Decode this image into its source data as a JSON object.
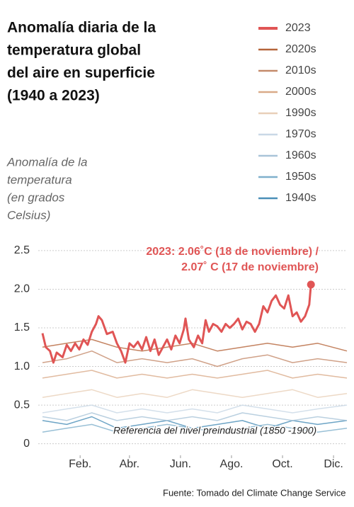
{
  "chart_data": {
    "type": "line",
    "title": [
      "Anomalía diaria de la",
      "temperatura global",
      "del aire en superficie",
      "(1940 a 2023)"
    ],
    "y_axis_label": [
      "Anomalía de la",
      "temperatura",
      "(en grados",
      "Celsius)"
    ],
    "annotation": [
      "2023: 2.06˚C (18 de noviembre) /",
      "2.07˚ C (17 de noviembre)"
    ],
    "reference_label": "Referencia del nivel preindustrial (1850 -1900)",
    "source": "Fuente: Tomado del Climate Change Service",
    "xlim": [
      1,
      365
    ],
    "xticks": [
      {
        "value": 46,
        "label": "Feb."
      },
      {
        "value": 105,
        "label": "Abr."
      },
      {
        "value": 166,
        "label": "Jun."
      },
      {
        "value": 227,
        "label": "Ago."
      },
      {
        "value": 288,
        "label": "Oct."
      },
      {
        "value": 349,
        "label": "Dic."
      }
    ],
    "ylim": [
      -0.15,
      2.6
    ],
    "yticks": [
      0,
      0.5,
      {
        "value": 1,
        "label": "1.0"
      },
      1.5,
      {
        "value": 2,
        "label": "2.0"
      },
      2.5
    ],
    "grid": true,
    "legend": "top-right",
    "series": [
      {
        "name": "1940s",
        "color": "#4a8fb8",
        "x": [
          1,
          30,
          60,
          90,
          120,
          150,
          180,
          210,
          240,
          270,
          300,
          330,
          365
        ],
        "values": [
          0.3,
          0.25,
          0.35,
          0.2,
          0.25,
          0.3,
          0.2,
          0.25,
          0.3,
          0.2,
          0.3,
          0.25,
          0.3
        ]
      },
      {
        "name": "1950s",
        "color": "#7fb0cc",
        "x": [
          1,
          30,
          60,
          90,
          120,
          150,
          180,
          210,
          240,
          270,
          300,
          330,
          365
        ],
        "values": [
          0.15,
          0.2,
          0.25,
          0.15,
          0.2,
          0.25,
          0.2,
          0.15,
          0.2,
          0.25,
          0.2,
          0.15,
          0.2
        ]
      },
      {
        "name": "1960s",
        "color": "#a9c4d8",
        "x": [
          1,
          30,
          60,
          90,
          120,
          150,
          180,
          210,
          240,
          270,
          300,
          330,
          365
        ],
        "values": [
          0.35,
          0.3,
          0.4,
          0.3,
          0.35,
          0.3,
          0.35,
          0.3,
          0.4,
          0.35,
          0.3,
          0.35,
          0.3
        ]
      },
      {
        "name": "1970s",
        "color": "#c9d8e6",
        "x": [
          1,
          30,
          60,
          90,
          120,
          150,
          180,
          210,
          240,
          270,
          300,
          330,
          365
        ],
        "values": [
          0.4,
          0.45,
          0.5,
          0.4,
          0.45,
          0.4,
          0.45,
          0.4,
          0.5,
          0.45,
          0.4,
          0.45,
          0.5
        ]
      },
      {
        "name": "1990s",
        "color": "#e8cfb8",
        "x": [
          1,
          30,
          60,
          90,
          120,
          150,
          180,
          210,
          240,
          270,
          300,
          330,
          365
        ],
        "values": [
          0.6,
          0.65,
          0.7,
          0.6,
          0.65,
          0.6,
          0.7,
          0.65,
          0.6,
          0.65,
          0.7,
          0.6,
          0.65
        ]
      },
      {
        "name": "2000s",
        "color": "#d9aa88",
        "x": [
          1,
          30,
          60,
          90,
          120,
          150,
          180,
          210,
          240,
          270,
          300,
          330,
          365
        ],
        "values": [
          0.85,
          0.9,
          0.95,
          0.85,
          0.9,
          0.85,
          0.9,
          0.85,
          0.9,
          0.95,
          0.85,
          0.9,
          0.85
        ]
      },
      {
        "name": "2010s",
        "color": "#c48a6a",
        "x": [
          1,
          30,
          60,
          90,
          120,
          150,
          180,
          210,
          240,
          270,
          300,
          330,
          365
        ],
        "values": [
          1.05,
          1.1,
          1.2,
          1.05,
          1.1,
          1.05,
          1.1,
          1.0,
          1.1,
          1.15,
          1.05,
          1.1,
          1.05
        ]
      },
      {
        "name": "2020s",
        "color": "#b5643a",
        "x": [
          1,
          30,
          60,
          90,
          120,
          150,
          180,
          210,
          240,
          270,
          300,
          330,
          365
        ],
        "values": [
          1.25,
          1.3,
          1.35,
          1.25,
          1.2,
          1.25,
          1.3,
          1.2,
          1.25,
          1.3,
          1.25,
          1.3,
          1.2
        ]
      },
      {
        "name": "2023",
        "color": "#e05555",
        "x": [
          1,
          5,
          10,
          14,
          18,
          25,
          30,
          35,
          40,
          45,
          50,
          55,
          60,
          65,
          68,
          72,
          78,
          85,
          90,
          95,
          100,
          105,
          110,
          115,
          120,
          125,
          130,
          135,
          140,
          145,
          150,
          155,
          160,
          165,
          170,
          172,
          176,
          182,
          187,
          192,
          196,
          200,
          205,
          210,
          215,
          220,
          225,
          230,
          235,
          240,
          245,
          250,
          255,
          260,
          265,
          270,
          275,
          280,
          285,
          290,
          295,
          300,
          305,
          310,
          315,
          320,
          322
        ],
        "values": [
          1.43,
          1.25,
          1.2,
          1.05,
          1.18,
          1.12,
          1.28,
          1.2,
          1.3,
          1.22,
          1.35,
          1.28,
          1.45,
          1.55,
          1.65,
          1.6,
          1.42,
          1.45,
          1.3,
          1.2,
          1.05,
          1.3,
          1.25,
          1.32,
          1.22,
          1.38,
          1.2,
          1.35,
          1.15,
          1.25,
          1.35,
          1.22,
          1.4,
          1.3,
          1.48,
          1.62,
          1.35,
          1.25,
          1.4,
          1.3,
          1.6,
          1.45,
          1.55,
          1.52,
          1.45,
          1.55,
          1.5,
          1.55,
          1.62,
          1.48,
          1.58,
          1.55,
          1.45,
          1.55,
          1.78,
          1.7,
          1.85,
          1.92,
          1.8,
          1.75,
          1.92,
          1.65,
          1.7,
          1.58,
          1.65,
          1.8,
          2.06
        ]
      }
    ]
  }
}
